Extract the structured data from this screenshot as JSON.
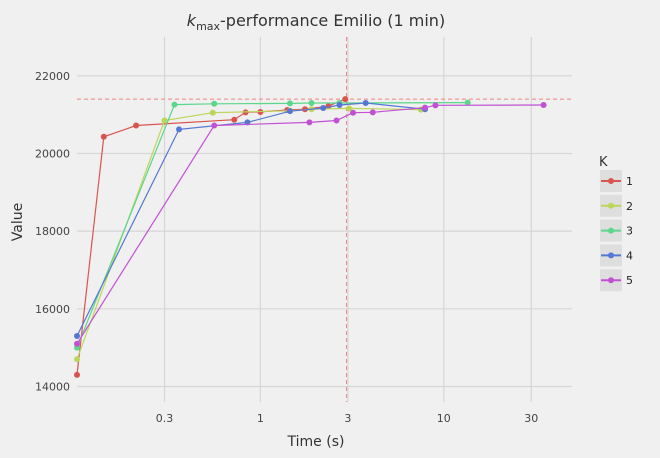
{
  "chart_data": {
    "type": "line",
    "title_prefix": "k",
    "title_subscript": "max",
    "title_suffix": "-performance Emilio (1 min)",
    "xlabel": "Time (s)",
    "ylabel": "Value",
    "x_scale": "log",
    "xlim": [
      0.1,
      50
    ],
    "ylim": [
      13600,
      23000
    ],
    "x_ticks": [
      0.3,
      1,
      3,
      10,
      30
    ],
    "x_tick_labels": [
      "0.3",
      "1",
      "3",
      "10",
      "30"
    ],
    "y_ticks": [
      14000,
      16000,
      18000,
      20000,
      22000
    ],
    "y_tick_labels": [
      "14000",
      "16000",
      "18000",
      "20000",
      "22000"
    ],
    "grid": true,
    "legend_title": "K",
    "legend_position": "right",
    "reference_lines": {
      "x": 2.95,
      "y": 21400,
      "color": "#f08080"
    },
    "series": [
      {
        "name": "1",
        "color": "#d9544f",
        "x": [
          0.1,
          0.14,
          0.21,
          0.72,
          0.83,
          1.0,
          1.4,
          1.75,
          2.35,
          2.9
        ],
        "y": [
          14300,
          20430,
          20720,
          20870,
          21060,
          21070,
          21120,
          21140,
          21220,
          21400
        ]
      },
      {
        "name": "2",
        "color": "#bcd65a",
        "x": [
          0.1,
          0.3,
          0.55,
          1.45,
          1.9,
          3.05,
          7.5
        ],
        "y": [
          14700,
          20850,
          21050,
          21100,
          21140,
          21160,
          21130
        ]
      },
      {
        "name": "3",
        "color": "#5cd68a",
        "x": [
          0.1,
          0.34,
          0.56,
          1.45,
          1.9,
          2.7,
          13.5
        ],
        "y": [
          15000,
          21260,
          21280,
          21290,
          21300,
          21300,
          21310
        ]
      },
      {
        "name": "4",
        "color": "#5577d4",
        "x": [
          0.1,
          0.36,
          0.85,
          1.45,
          2.2,
          2.7,
          3.75,
          7.9
        ],
        "y": [
          15300,
          20620,
          20800,
          21090,
          21170,
          21250,
          21300,
          21140
        ]
      },
      {
        "name": "5",
        "color": "#c250d4",
        "x": [
          0.1,
          0.56,
          1.85,
          2.6,
          3.2,
          4.1,
          7.9,
          9.0,
          35.0
        ],
        "y": [
          15100,
          20720,
          20800,
          20850,
          21050,
          21060,
          21180,
          21240,
          21250
        ]
      }
    ]
  }
}
